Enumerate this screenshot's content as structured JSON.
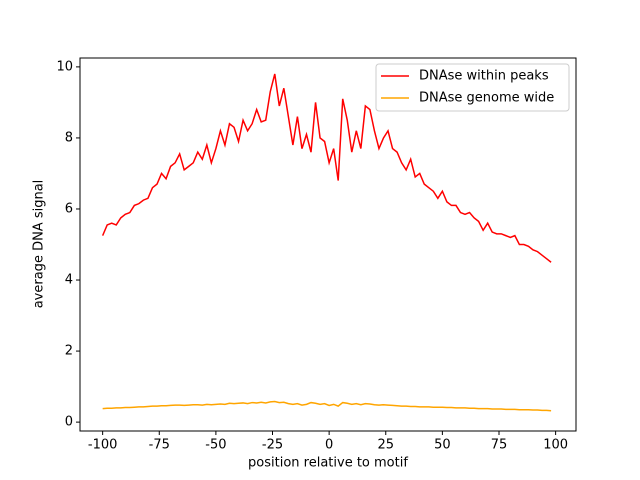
{
  "chart_data": {
    "type": "line",
    "xlabel": "position relative to motif",
    "ylabel": "average DNA signal",
    "x": [
      -100,
      -98,
      -96,
      -94,
      -92,
      -90,
      -88,
      -86,
      -84,
      -82,
      -80,
      -78,
      -76,
      -74,
      -72,
      -70,
      -68,
      -66,
      -64,
      -62,
      -60,
      -58,
      -56,
      -54,
      -52,
      -50,
      -48,
      -46,
      -44,
      -42,
      -40,
      -38,
      -36,
      -34,
      -32,
      -30,
      -28,
      -26,
      -24,
      -22,
      -20,
      -18,
      -16,
      -14,
      -12,
      -10,
      -8,
      -6,
      -4,
      -2,
      0,
      2,
      4,
      6,
      8,
      10,
      12,
      14,
      16,
      18,
      20,
      22,
      24,
      26,
      28,
      30,
      32,
      34,
      36,
      38,
      40,
      42,
      44,
      46,
      48,
      50,
      52,
      54,
      56,
      58,
      60,
      62,
      64,
      66,
      68,
      70,
      72,
      74,
      76,
      78,
      80,
      82,
      84,
      86,
      88,
      90,
      92,
      94,
      96,
      98
    ],
    "series": [
      {
        "name": "DNAse within peaks",
        "color": "#ff0000",
        "values": [
          5.25,
          5.55,
          5.6,
          5.55,
          5.75,
          5.85,
          5.9,
          6.1,
          6.15,
          6.25,
          6.3,
          6.6,
          6.7,
          7.0,
          6.85,
          7.2,
          7.3,
          7.55,
          7.1,
          7.2,
          7.3,
          7.6,
          7.4,
          7.8,
          7.3,
          7.7,
          8.2,
          7.8,
          8.4,
          8.3,
          7.9,
          8.5,
          8.2,
          8.4,
          8.8,
          8.45,
          8.5,
          9.3,
          9.8,
          8.9,
          9.4,
          8.6,
          7.8,
          8.6,
          7.7,
          8.1,
          7.6,
          9.0,
          8.0,
          7.9,
          7.3,
          7.7,
          6.8,
          9.1,
          8.5,
          7.6,
          8.2,
          7.7,
          8.9,
          8.8,
          8.2,
          7.7,
          8.0,
          8.2,
          7.7,
          7.6,
          7.3,
          7.1,
          7.4,
          6.9,
          7.0,
          6.7,
          6.6,
          6.5,
          6.3,
          6.5,
          6.2,
          6.1,
          6.1,
          5.9,
          5.85,
          5.9,
          5.75,
          5.65,
          5.4,
          5.6,
          5.35,
          5.3,
          5.3,
          5.25,
          5.2,
          5.25,
          5.0,
          5.0,
          4.95,
          4.85,
          4.8,
          4.7,
          4.6,
          4.5
        ]
      },
      {
        "name": "DNAse genome wide",
        "color": "#ffa500",
        "values": [
          0.38,
          0.39,
          0.39,
          0.4,
          0.4,
          0.41,
          0.41,
          0.42,
          0.43,
          0.43,
          0.44,
          0.45,
          0.45,
          0.46,
          0.46,
          0.47,
          0.48,
          0.48,
          0.47,
          0.48,
          0.49,
          0.49,
          0.48,
          0.5,
          0.49,
          0.5,
          0.51,
          0.5,
          0.53,
          0.52,
          0.53,
          0.54,
          0.52,
          0.55,
          0.54,
          0.56,
          0.54,
          0.57,
          0.58,
          0.55,
          0.56,
          0.52,
          0.5,
          0.52,
          0.48,
          0.5,
          0.55,
          0.53,
          0.5,
          0.52,
          0.47,
          0.5,
          0.45,
          0.55,
          0.53,
          0.5,
          0.52,
          0.49,
          0.52,
          0.51,
          0.49,
          0.48,
          0.49,
          0.48,
          0.47,
          0.46,
          0.45,
          0.45,
          0.44,
          0.44,
          0.43,
          0.43,
          0.43,
          0.42,
          0.42,
          0.42,
          0.41,
          0.41,
          0.4,
          0.4,
          0.4,
          0.39,
          0.39,
          0.38,
          0.38,
          0.38,
          0.37,
          0.37,
          0.37,
          0.36,
          0.36,
          0.36,
          0.35,
          0.35,
          0.35,
          0.34,
          0.34,
          0.33,
          0.33,
          0.32
        ]
      }
    ],
    "xlim": [
      -110,
      109
    ],
    "xticks": [
      -100,
      -75,
      -50,
      -25,
      0,
      25,
      50,
      75,
      100
    ],
    "ylim": [
      -0.25,
      10.25
    ],
    "yticks": [
      0,
      2,
      4,
      6,
      8,
      10
    ],
    "legend": "upper right"
  }
}
